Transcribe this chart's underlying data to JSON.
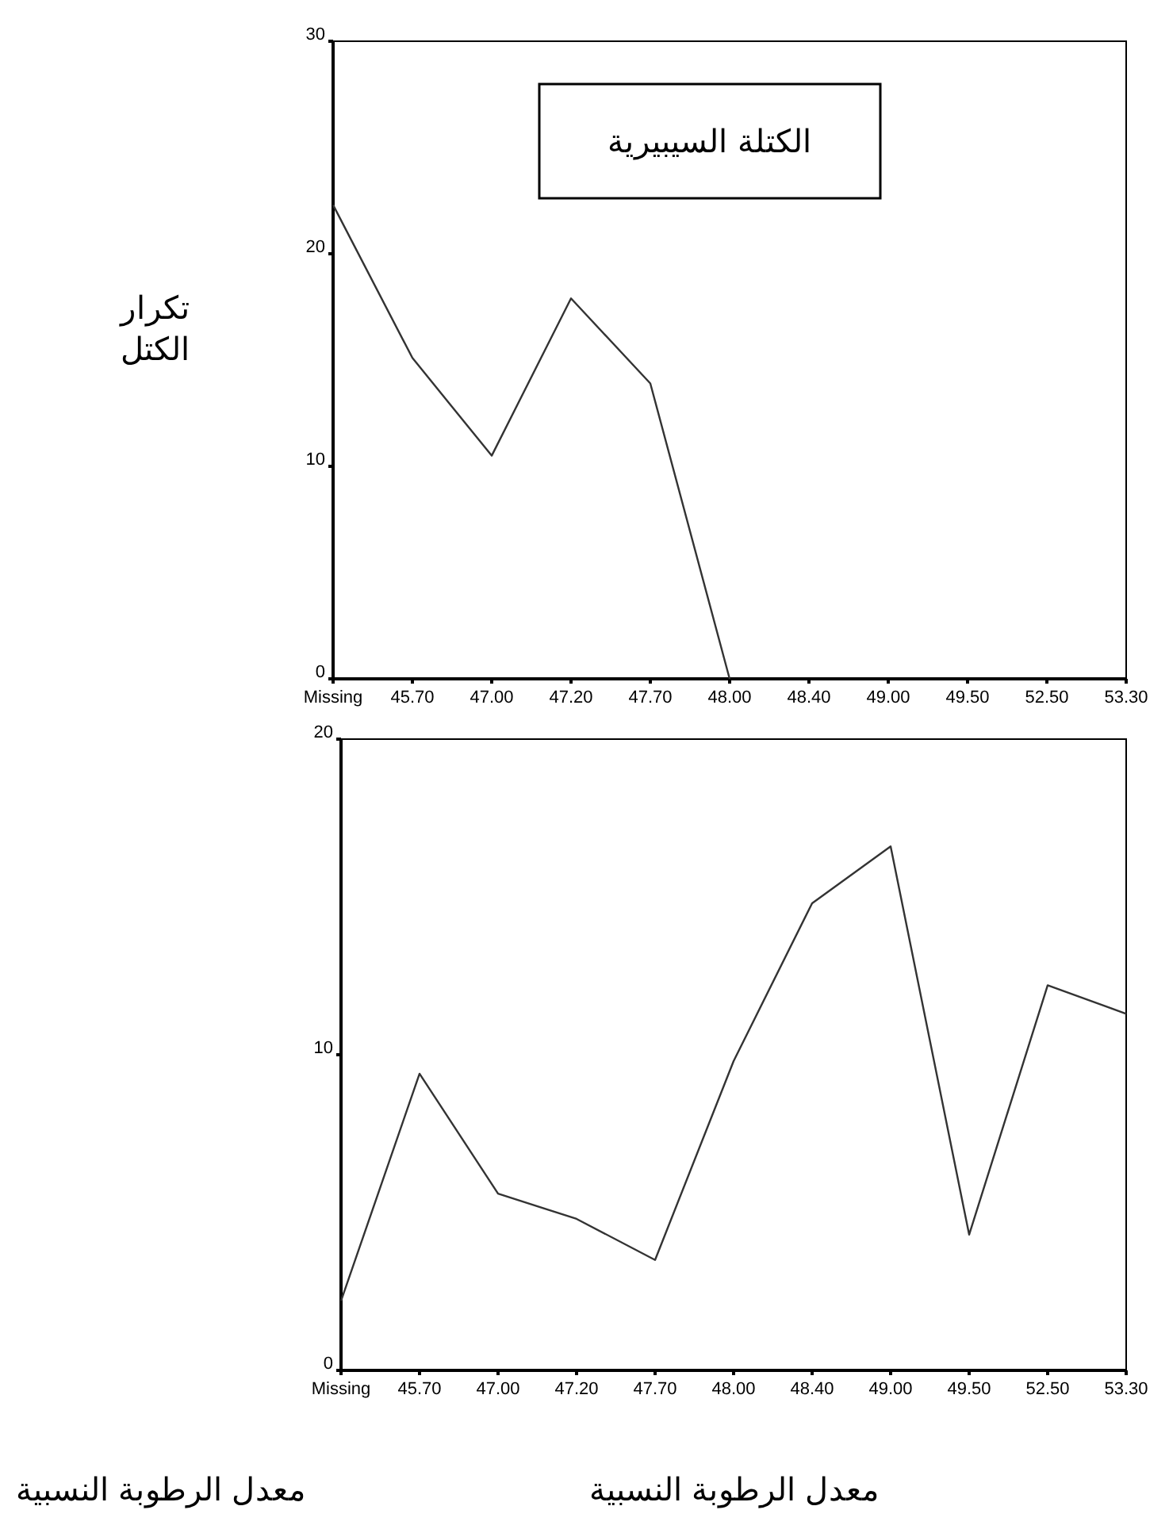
{
  "chart_data": [
    {
      "type": "line",
      "title": "الكتلة السيبيرية",
      "ylabel": "تكرار الكتل",
      "xlabel": "معدل الرطوبة النسبية",
      "categories": [
        "Missing",
        "45.70",
        "47.00",
        "47.20",
        "47.70",
        "48.00",
        "48.40",
        "49.00",
        "49.50",
        "52.50",
        "53.30"
      ],
      "series": [
        {
          "color": "#333333",
          "values": [
            22.3,
            15.1,
            10.5,
            17.9,
            13.9,
            0,
            null,
            null,
            null,
            null,
            null
          ]
        }
      ],
      "ylim": [
        0,
        30
      ],
      "yticks": [
        0,
        10,
        20,
        30
      ]
    },
    {
      "type": "line",
      "xlabel": "معدل الرطوبة النسبية",
      "categories": [
        "Missing",
        "45.70",
        "47.00",
        "47.20",
        "47.70",
        "48.00",
        "48.40",
        "49.00",
        "49.50",
        "52.50",
        "53.30"
      ],
      "series": [
        {
          "color": "#333333",
          "values": [
            2.2,
            9.4,
            5.6,
            4.8,
            3.5,
            9.8,
            14.8,
            16.6,
            4.3,
            12.2,
            11.3
          ]
        }
      ],
      "ylim": [
        0,
        20
      ],
      "yticks": [
        0,
        10,
        20
      ]
    }
  ]
}
